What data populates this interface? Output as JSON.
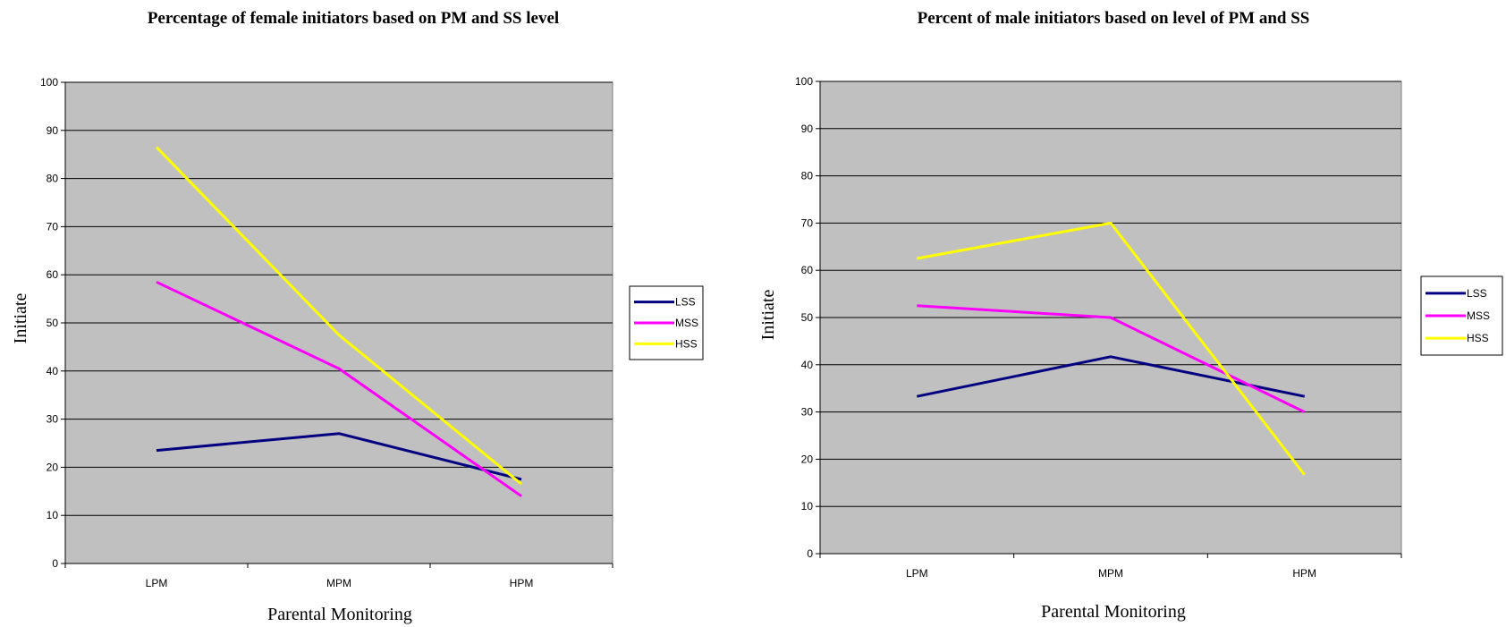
{
  "chart_data": [
    {
      "type": "line",
      "title": "Percentage of female initiators based on PM and SS level",
      "xlabel": "Parental Monitoring",
      "ylabel": "Initiate",
      "categories": [
        "LPM",
        "MPM",
        "HPM"
      ],
      "ylim": [
        0,
        100
      ],
      "yticks": [
        0,
        10,
        20,
        30,
        40,
        50,
        60,
        70,
        80,
        90,
        100
      ],
      "grid": true,
      "legend_position": "right",
      "series": [
        {
          "name": "LSS",
          "color": "#000080",
          "values": [
            23.5,
            27,
            17.5
          ]
        },
        {
          "name": "MSS",
          "color": "#ff00ff",
          "values": [
            58.5,
            40.5,
            14
          ]
        },
        {
          "name": "HSS",
          "color": "#ffff00",
          "values": [
            86.5,
            47.5,
            16.5
          ]
        }
      ]
    },
    {
      "type": "line",
      "title": "Percent of male initiators based on level of PM and SS",
      "xlabel": "Parental Monitoring",
      "ylabel": "Initiate",
      "categories": [
        "LPM",
        "MPM",
        "HPM"
      ],
      "ylim": [
        0,
        100
      ],
      "yticks": [
        0,
        10,
        20,
        30,
        40,
        50,
        60,
        70,
        80,
        90,
        100
      ],
      "grid": true,
      "legend_position": "right",
      "series": [
        {
          "name": "LSS",
          "color": "#000080",
          "values": [
            33.3,
            41.7,
            33.3
          ]
        },
        {
          "name": "MSS",
          "color": "#ff00ff",
          "values": [
            52.5,
            50,
            30
          ]
        },
        {
          "name": "HSS",
          "color": "#ffff00",
          "values": [
            62.5,
            70,
            16.7
          ]
        }
      ]
    }
  ]
}
